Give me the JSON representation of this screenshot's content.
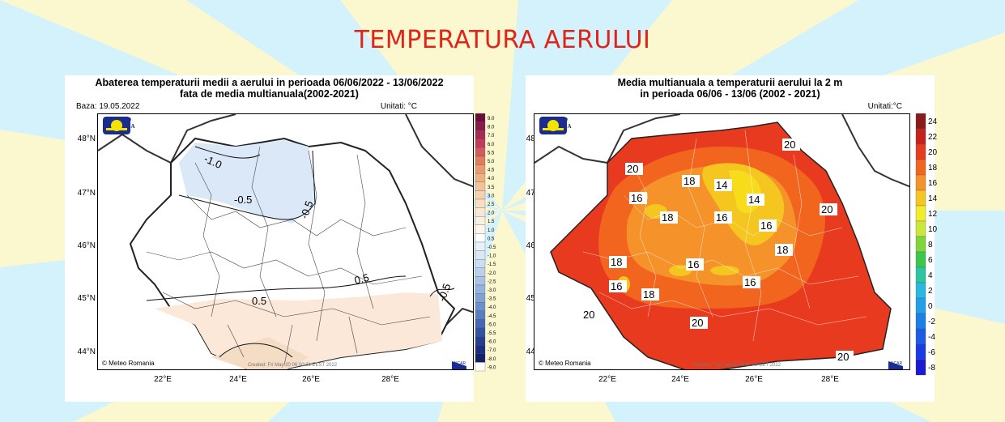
{
  "page_title": "TEMPERATURA AERULUI",
  "left_map": {
    "title_line1": "Abaterea temperaturii medii a aerului in perioada 06/06/2022 - 13/06/2022",
    "title_line2": "fata de media multianuala(2002-2021)",
    "base_label": "Baza: 19.05.2022",
    "units": "Unitati: °C",
    "credit": "Meteo Romania",
    "created": "Created: Fri May 20 06:00:31 EEST 2022",
    "colorbar_labels": [
      "9.0",
      "8.0",
      "7.0",
      "6.0",
      "5.5",
      "5.0",
      "4.5",
      "4.0",
      "3.5",
      "3.0",
      "2.5",
      "2.0",
      "1.5",
      "1.0",
      "0.5",
      "-0.5",
      "-1.0",
      "-1.5",
      "-2.0",
      "-2.5",
      "-3.0",
      "-3.5",
      "-4.0",
      "-4.5",
      "-5.0",
      "-5.5",
      "-6.0",
      "-7.0",
      "-8.0",
      "-9.0"
    ],
    "contour_labels": [
      "-1.0",
      "-0.5",
      "-0.5",
      "0.5",
      "0.5",
      "-0.5"
    ]
  },
  "right_map": {
    "title_line1": "Media multianuala a temperaturii aerului la 2 m",
    "title_line2": "in perioada 06/06 - 13/06 (2002 - 2021)",
    "units": "Unitati:°C",
    "credit": "Meteo Romania",
    "created": "Created: Thu Jan 20 19:56:49 EET 2022",
    "colorbar_labels": [
      "24",
      "22",
      "20",
      "18",
      "16",
      "14",
      "12",
      "10",
      "8",
      "6",
      "4",
      "2",
      "0",
      "-2",
      "-4",
      "-6",
      "-8"
    ],
    "contour_labels": [
      "20",
      "20",
      "18",
      "14",
      "14",
      "16",
      "18",
      "16",
      "20",
      "16",
      "18",
      "18",
      "16",
      "16",
      "16",
      "18",
      "20",
      "20",
      "20"
    ]
  },
  "logo": {
    "top": "METEO",
    "bottom": "ROMANIA"
  },
  "ncar_label": "NCAR",
  "lat_labels": [
    "48°N",
    "47°N",
    "46°N",
    "45°N",
    "44°N"
  ],
  "lon_labels": [
    "22°E",
    "24°E",
    "26°E",
    "28°E"
  ],
  "colors": {
    "title": "#e2231a",
    "background": "#d4f2fb",
    "rays": "#fbf8cf"
  }
}
